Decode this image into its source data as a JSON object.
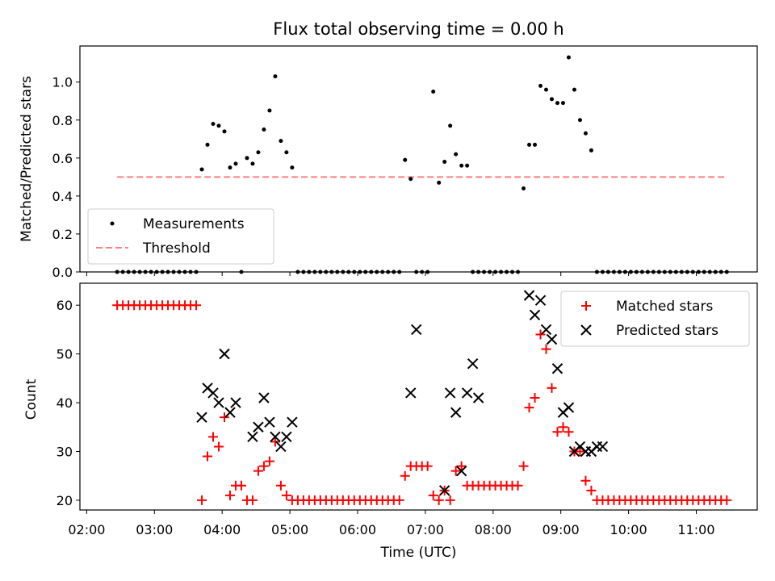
{
  "chart_data": [
    {
      "type": "scatter",
      "title": "Flux total observing time = 0.00 h",
      "xlabel": "",
      "ylabel": "Matched/Predicted stars",
      "ylim": [
        0,
        1.19
      ],
      "yticks": [
        "0.0",
        "0.2",
        "0.4",
        "0.6",
        "0.8",
        "1.0"
      ],
      "xlim_hours": [
        1.9,
        11.9
      ],
      "grid": false,
      "legend_position": "lower-left",
      "series": [
        {
          "name": "Measurements",
          "style": "dot",
          "color": "#000000",
          "x": [
            "02:27",
            "02:32",
            "02:37",
            "02:42",
            "02:47",
            "02:52",
            "02:57",
            "03:02",
            "03:07",
            "03:12",
            "03:17",
            "03:22",
            "03:27",
            "03:32",
            "03:37",
            "03:42",
            "03:47",
            "03:52",
            "03:57",
            "04:02",
            "04:07",
            "04:12",
            "04:17",
            "04:22",
            "04:27",
            "04:32",
            "04:37",
            "04:42",
            "04:47",
            "04:52",
            "04:57",
            "05:02",
            "05:07",
            "05:12",
            "05:17",
            "05:22",
            "05:27",
            "05:32",
            "05:37",
            "05:42",
            "05:47",
            "05:52",
            "05:57",
            "06:02",
            "06:07",
            "06:12",
            "06:17",
            "06:22",
            "06:27",
            "06:32",
            "06:37",
            "06:42",
            "06:47",
            "06:52",
            "06:57",
            "07:02",
            "07:07",
            "07:12",
            "07:17",
            "07:22",
            "07:27",
            "07:32",
            "07:37",
            "07:42",
            "07:47",
            "07:52",
            "07:57",
            "08:02",
            "08:07",
            "08:12",
            "08:17",
            "08:22",
            "08:27",
            "08:32",
            "08:37",
            "08:42",
            "08:47",
            "08:52",
            "08:57",
            "09:02",
            "09:07",
            "09:12",
            "09:17",
            "09:22",
            "09:27",
            "09:32",
            "09:37",
            "09:42",
            "09:47",
            "09:52",
            "09:57",
            "10:02",
            "10:07",
            "10:12",
            "10:17",
            "10:22",
            "10:27",
            "10:32",
            "10:37",
            "10:42",
            "10:47",
            "10:52",
            "10:57",
            "11:02",
            "11:07",
            "11:12",
            "11:17",
            "11:22",
            "11:27"
          ],
          "y": [
            0,
            0,
            0,
            0,
            0,
            0,
            0,
            0,
            0,
            0,
            0,
            0,
            0,
            0,
            0,
            0.54,
            0.67,
            0.78,
            0.77,
            0.74,
            0.55,
            0.57,
            0,
            0.6,
            0.57,
            0.63,
            0.75,
            0.85,
            1.03,
            0.69,
            0.63,
            0.55,
            0,
            0,
            0,
            0,
            0,
            0,
            0,
            0,
            0,
            0,
            0,
            0,
            0,
            0,
            0,
            0,
            0,
            0,
            0,
            0.59,
            0.49,
            0,
            0,
            0,
            0.95,
            0.47,
            0.58,
            0.77,
            0.62,
            0.56,
            0.56,
            0,
            0,
            0,
            0,
            0,
            0,
            0,
            0,
            0,
            0.44,
            0.67,
            0.67,
            0.98,
            0.96,
            0.91,
            0.89,
            0.89,
            1.13,
            0.96,
            0.8,
            0.73,
            0.64,
            0,
            0,
            0,
            0,
            0,
            0,
            0,
            0,
            0,
            0,
            0,
            0,
            0,
            0,
            0,
            0,
            0,
            0,
            0,
            0,
            0,
            0,
            0,
            0
          ]
        },
        {
          "name": "Threshold",
          "style": "dashed-line",
          "color": "#ff7f7f",
          "x": [
            "02:27",
            "11:27"
          ],
          "y": [
            0.5,
            0.5
          ]
        }
      ]
    },
    {
      "type": "scatter",
      "title": "",
      "xlabel": "Time (UTC)",
      "ylabel": "Count",
      "ylim": [
        18,
        64.5
      ],
      "yticks": [
        "20",
        "30",
        "40",
        "50",
        "60"
      ],
      "xlim_hours": [
        1.9,
        11.9
      ],
      "xticks": [
        "02:00",
        "03:00",
        "04:00",
        "05:00",
        "06:00",
        "07:00",
        "08:00",
        "09:00",
        "10:00",
        "11:00"
      ],
      "grid": false,
      "legend_position": "upper-right",
      "series": [
        {
          "name": "Matched stars",
          "style": "plus",
          "color": "#ff0000",
          "x": [
            "02:27",
            "02:32",
            "02:37",
            "02:42",
            "02:47",
            "02:52",
            "02:57",
            "03:02",
            "03:07",
            "03:12",
            "03:17",
            "03:22",
            "03:27",
            "03:32",
            "03:37",
            "03:42",
            "03:47",
            "03:52",
            "03:57",
            "04:02",
            "04:07",
            "04:12",
            "04:17",
            "04:22",
            "04:27",
            "04:32",
            "04:37",
            "04:42",
            "04:47",
            "04:52",
            "04:57",
            "05:02",
            "05:07",
            "05:12",
            "05:17",
            "05:22",
            "05:27",
            "05:32",
            "05:37",
            "05:42",
            "05:47",
            "05:52",
            "05:57",
            "06:02",
            "06:07",
            "06:12",
            "06:17",
            "06:22",
            "06:27",
            "06:32",
            "06:37",
            "06:42",
            "06:47",
            "06:52",
            "06:57",
            "07:02",
            "07:07",
            "07:12",
            "07:17",
            "07:22",
            "07:27",
            "07:32",
            "07:37",
            "07:42",
            "07:47",
            "07:52",
            "07:57",
            "08:02",
            "08:07",
            "08:12",
            "08:17",
            "08:22",
            "08:27",
            "08:32",
            "08:37",
            "08:42",
            "08:47",
            "08:52",
            "08:57",
            "09:02",
            "09:07",
            "09:12",
            "09:17",
            "09:22",
            "09:27",
            "09:32",
            "09:37",
            "09:42",
            "09:47",
            "09:52",
            "09:57",
            "10:02",
            "10:07",
            "10:12",
            "10:17",
            "10:22",
            "10:27",
            "10:32",
            "10:37",
            "10:42",
            "10:47",
            "10:52",
            "10:57",
            "11:02",
            "11:07",
            "11:12",
            "11:17",
            "11:22",
            "11:27"
          ],
          "y": [
            60,
            60,
            60,
            60,
            60,
            60,
            60,
            60,
            60,
            60,
            60,
            60,
            60,
            60,
            60,
            20,
            29,
            33,
            31,
            37,
            21,
            23,
            23,
            20,
            20,
            26,
            27,
            28,
            32,
            23,
            21,
            20,
            20,
            20,
            20,
            20,
            20,
            20,
            20,
            20,
            20,
            20,
            20,
            20,
            20,
            20,
            20,
            20,
            20,
            20,
            20,
            25,
            27,
            27,
            27,
            27,
            21,
            20,
            22,
            20,
            26,
            27,
            23,
            23,
            23,
            23,
            23,
            23,
            23,
            23,
            23,
            23,
            27,
            39,
            41,
            54,
            51,
            43,
            34,
            35,
            34,
            30,
            30,
            24,
            22,
            20,
            20,
            20,
            20,
            20,
            20,
            20,
            20,
            20,
            20,
            20,
            20,
            20,
            20,
            20,
            20,
            20,
            20,
            20,
            20,
            20,
            20,
            20,
            20
          ]
        },
        {
          "name": "Predicted stars",
          "style": "x",
          "color": "#000000",
          "x": [
            "03:42",
            "03:47",
            "03:52",
            "03:57",
            "04:02",
            "04:07",
            "04:12",
            "04:27",
            "04:32",
            "04:37",
            "04:42",
            "04:47",
            "04:52",
            "04:57",
            "05:02",
            "06:47",
            "06:52",
            "07:17",
            "07:22",
            "07:27",
            "07:32",
            "07:37",
            "07:42",
            "07:47",
            "08:32",
            "08:37",
            "08:42",
            "08:47",
            "08:52",
            "08:57",
            "09:02",
            "09:07",
            "09:12",
            "09:17",
            "09:22",
            "09:27",
            "09:32",
            "09:37"
          ],
          "y": [
            37,
            43,
            42,
            40,
            50,
            38,
            40,
            33,
            35,
            41,
            36,
            33,
            31,
            33,
            36,
            42,
            55,
            22,
            42,
            38,
            26,
            42,
            48,
            41,
            62,
            58,
            61,
            55,
            53,
            47,
            38,
            39,
            30,
            31,
            30,
            30,
            31,
            31
          ]
        }
      ]
    }
  ]
}
